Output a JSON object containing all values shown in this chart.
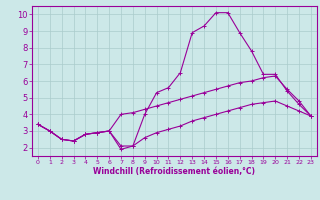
{
  "xlabel": "Windchill (Refroidissement éolien,°C)",
  "background_color": "#cce8e8",
  "grid_color": "#aacccc",
  "line_color": "#990099",
  "xlim": [
    -0.5,
    23.5
  ],
  "ylim": [
    1.5,
    10.5
  ],
  "yticks": [
    2,
    3,
    4,
    5,
    6,
    7,
    8,
    9,
    10
  ],
  "xticks": [
    0,
    1,
    2,
    3,
    4,
    5,
    6,
    7,
    8,
    9,
    10,
    11,
    12,
    13,
    14,
    15,
    16,
    17,
    18,
    19,
    20,
    21,
    22,
    23
  ],
  "line1_x": [
    0,
    1,
    2,
    3,
    4,
    5,
    6,
    7,
    8,
    9,
    10,
    11,
    12,
    13,
    14,
    15,
    16,
    17,
    18,
    19,
    20,
    21,
    22,
    23
  ],
  "line1_y": [
    3.4,
    3.0,
    2.5,
    2.4,
    2.8,
    2.9,
    3.0,
    1.9,
    2.1,
    4.0,
    5.3,
    5.6,
    6.5,
    8.9,
    9.3,
    10.1,
    10.1,
    8.9,
    7.8,
    6.4,
    6.4,
    5.4,
    4.6,
    3.9
  ],
  "line2_x": [
    0,
    1,
    2,
    3,
    4,
    5,
    6,
    7,
    8,
    9,
    10,
    11,
    12,
    13,
    14,
    15,
    16,
    17,
    18,
    19,
    20,
    21,
    22,
    23
  ],
  "line2_y": [
    3.4,
    3.0,
    2.5,
    2.4,
    2.8,
    2.9,
    3.0,
    4.0,
    4.1,
    4.3,
    4.5,
    4.7,
    4.9,
    5.1,
    5.3,
    5.5,
    5.7,
    5.9,
    6.0,
    6.2,
    6.3,
    5.5,
    4.8,
    3.9
  ],
  "line3_x": [
    0,
    1,
    2,
    3,
    4,
    5,
    6,
    7,
    8,
    9,
    10,
    11,
    12,
    13,
    14,
    15,
    16,
    17,
    18,
    19,
    20,
    21,
    22,
    23
  ],
  "line3_y": [
    3.4,
    3.0,
    2.5,
    2.4,
    2.8,
    2.9,
    3.0,
    2.1,
    2.1,
    2.6,
    2.9,
    3.1,
    3.3,
    3.6,
    3.8,
    4.0,
    4.2,
    4.4,
    4.6,
    4.7,
    4.8,
    4.5,
    4.2,
    3.9
  ],
  "xlabel_fontsize": 5.5,
  "tick_fontsize_x": 4.5,
  "tick_fontsize_y": 6.0
}
